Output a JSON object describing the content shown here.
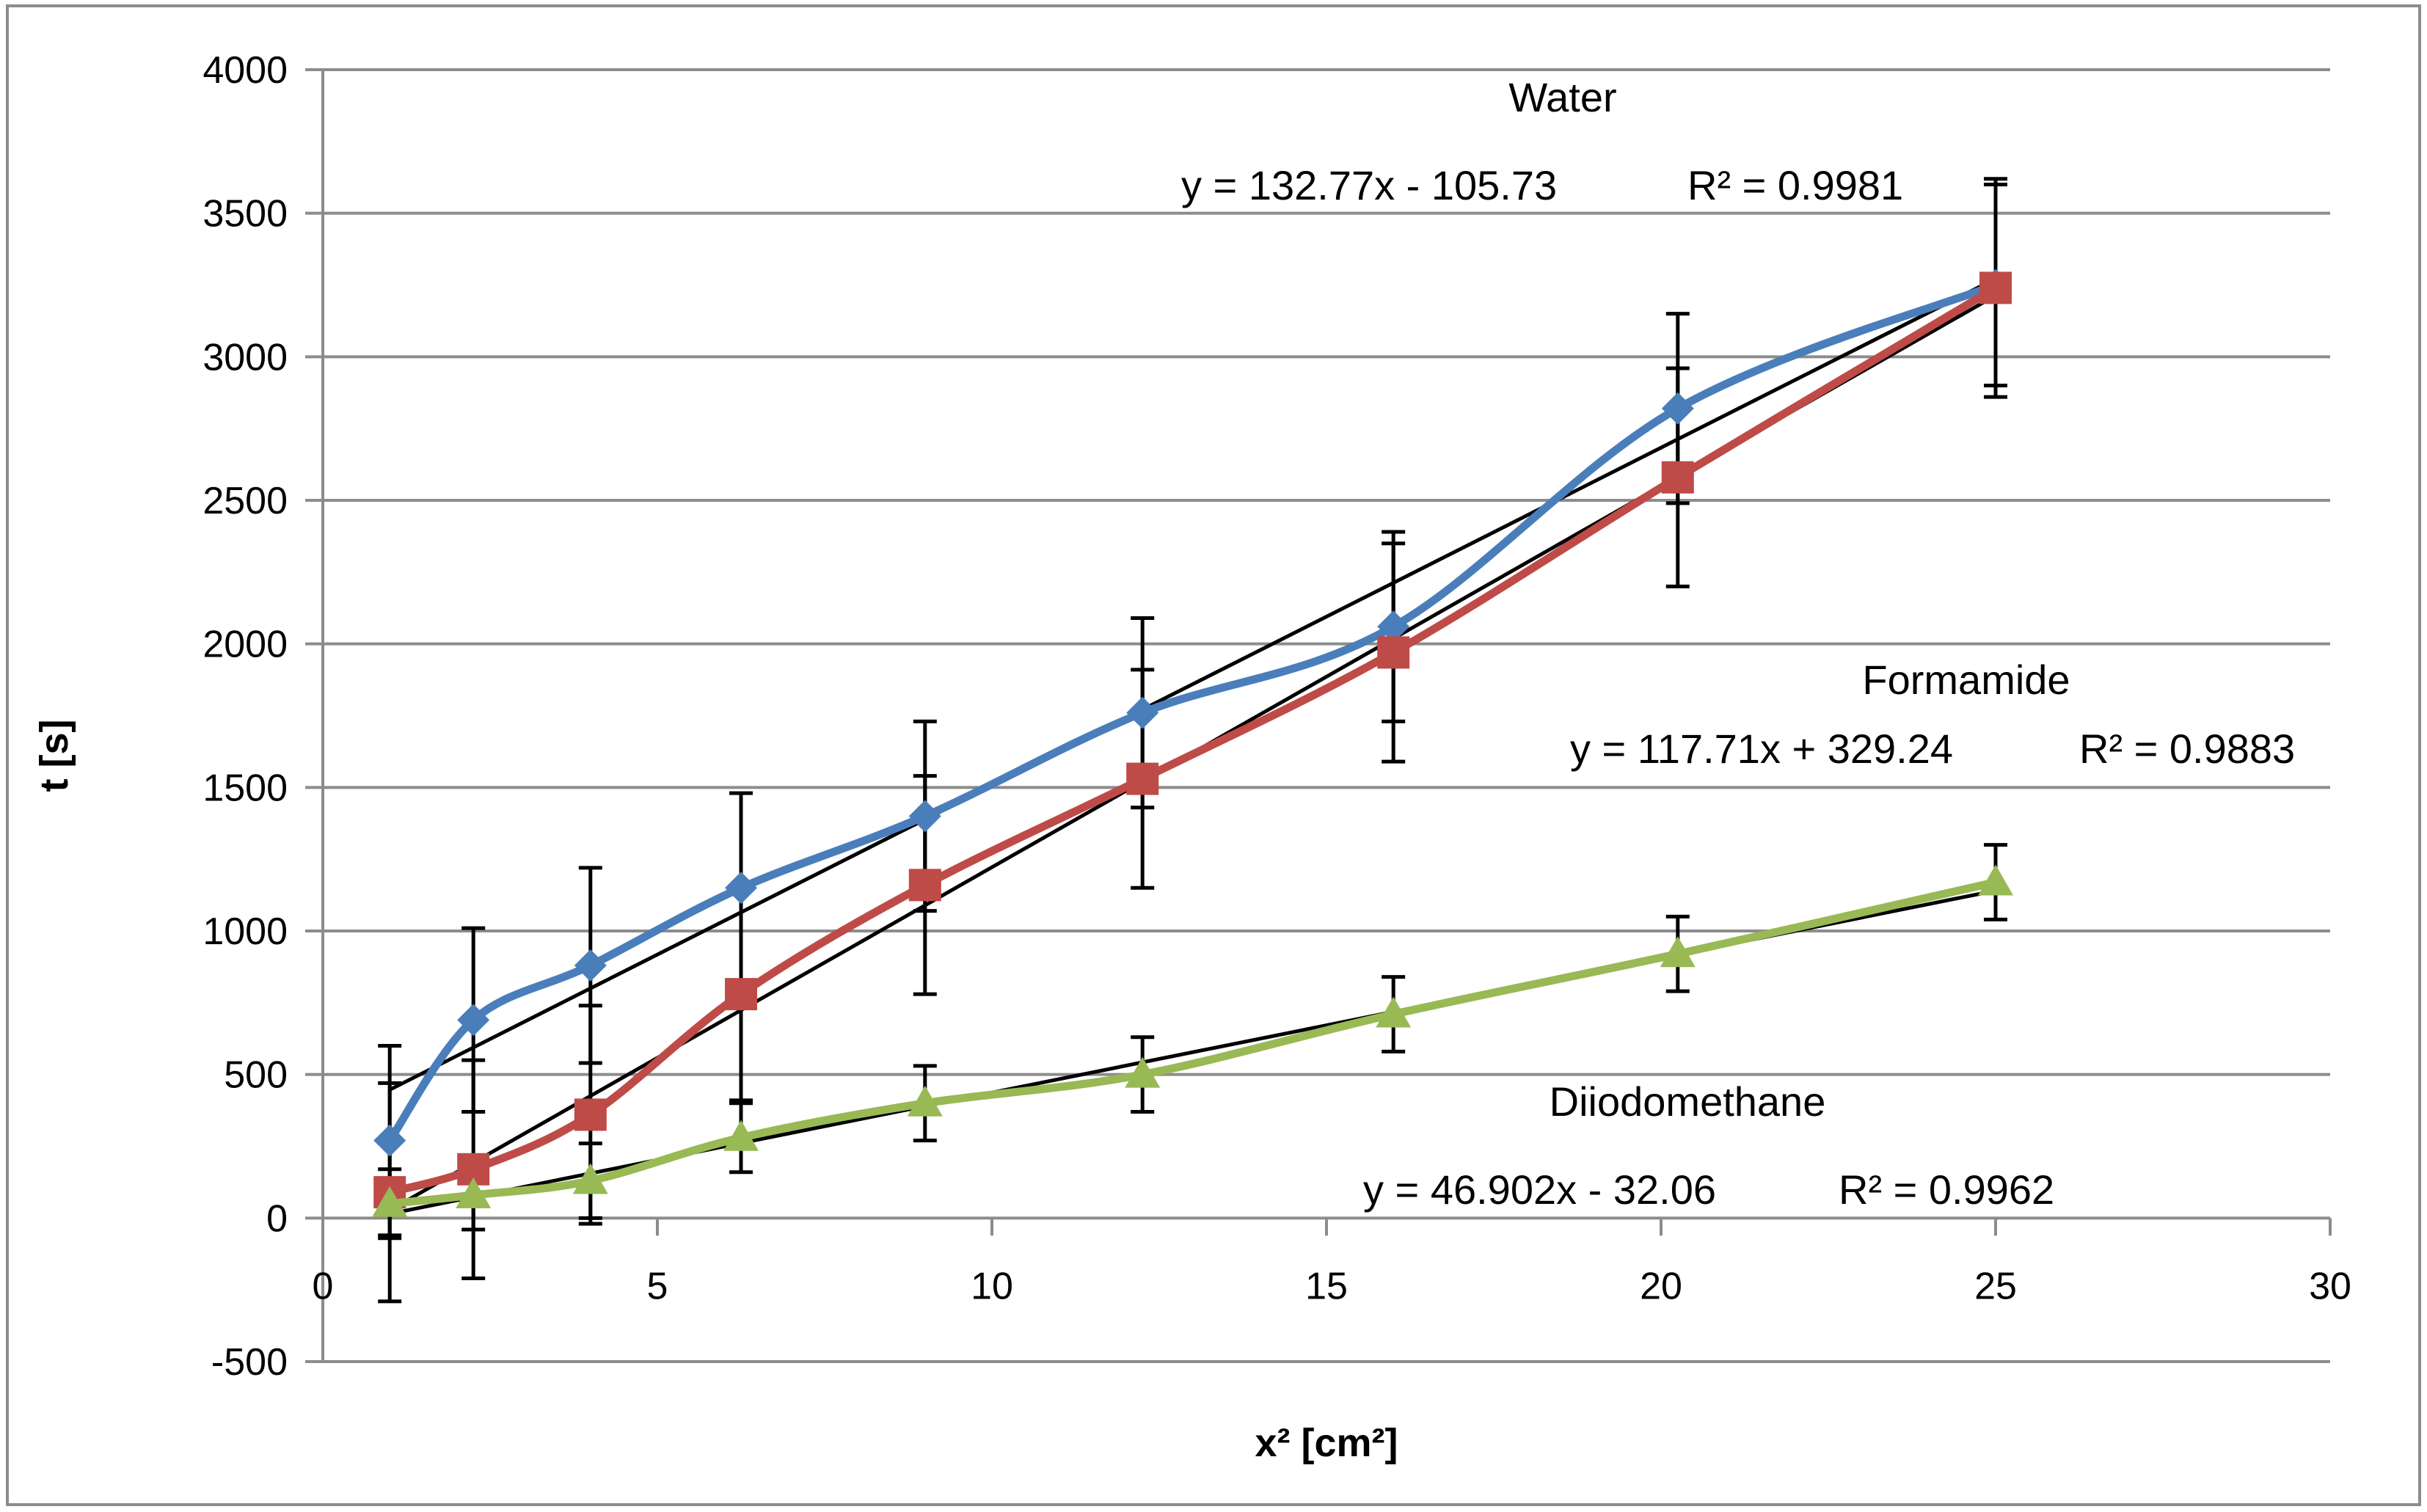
{
  "chart_data": {
    "type": "line",
    "title": "",
    "xlabel": "x² [cm²]",
    "ylabel": "t [s]",
    "xlim": [
      0,
      30
    ],
    "ylim": [
      -500,
      4000
    ],
    "x_ticks": [
      0,
      5,
      10,
      15,
      20,
      25,
      30
    ],
    "y_ticks": [
      -500,
      0,
      500,
      1000,
      1500,
      2000,
      2500,
      3000,
      3500,
      4000
    ],
    "grid": "horizontal",
    "legend": "none",
    "series": [
      {
        "name": "Water",
        "color": "#4a7ebb",
        "marker": "diamond",
        "x": [
          1,
          2.25,
          4,
          6.25,
          9,
          12.25,
          16,
          20.25,
          25
        ],
        "y": [
          270,
          690,
          880,
          1150,
          1400,
          1760,
          2060,
          2820,
          3250
        ],
        "err": [
          330,
          320,
          340,
          330,
          330,
          330,
          330,
          330,
          350
        ]
      },
      {
        "name": "Formamide",
        "color": "#be4b48",
        "marker": "square",
        "x": [
          1,
          2.25,
          4,
          6.25,
          9,
          12.25,
          16,
          20.25,
          25
        ],
        "y": [
          90,
          170,
          360,
          780,
          1160,
          1530,
          1970,
          2580,
          3240
        ],
        "err": [
          380,
          380,
          380,
          370,
          380,
          380,
          380,
          380,
          380
        ]
      },
      {
        "name": "Diiodomethane",
        "color": "#98b954",
        "marker": "triangle",
        "x": [
          1,
          2.25,
          4,
          6.25,
          9,
          12.25,
          16,
          20.25,
          25
        ],
        "y": [
          50,
          80,
          130,
          280,
          400,
          500,
          710,
          920,
          1170
        ],
        "err": [
          120,
          120,
          130,
          120,
          130,
          130,
          130,
          130,
          130
        ]
      }
    ],
    "trendlines": [
      {
        "name": "Water trend",
        "slope": 132.77,
        "intercept": -105.73,
        "x_from": 1,
        "x_to": 25
      },
      {
        "name": "Formamide trend",
        "slope": 117.71,
        "intercept": 329.24,
        "x_from": 1,
        "x_to": 25
      },
      {
        "name": "Diiodomethane trend",
        "slope": 46.902,
        "intercept": -32.06,
        "x_from": 1,
        "x_to": 25
      }
    ],
    "annotations": {
      "water_label": "Water",
      "water_eq": "y = 132.77x - 105.73",
      "water_r2": "R² = 0.9981",
      "formamide_label": "Formamide",
      "formamide_eq": "y = 117.71x + 329.24",
      "formamide_r2": "R² = 0.9883",
      "diiodo_label": "Diiodomethane",
      "diiodo_eq": "y = 46.902x - 32.06",
      "diiodo_r2": "R² = 0.9962"
    }
  }
}
